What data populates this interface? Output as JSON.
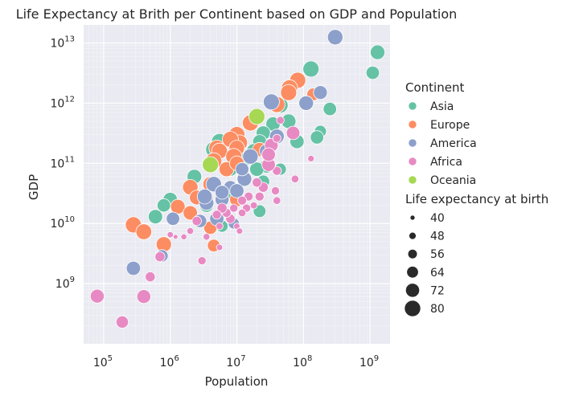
{
  "chart_data": {
    "type": "scatter",
    "title": "Life Expectancy at Brith per Continent based on GDP and Population",
    "xlabel": "Population",
    "ylabel": "GDP",
    "xscale": "log",
    "yscale": "log",
    "xlim": [
      50000,
      2000000000
    ],
    "ylim": [
      100000000,
      20000000000000
    ],
    "grid": true,
    "x_ticks": [
      "10^5",
      "10^6",
      "10^7",
      "10^8",
      "10^9"
    ],
    "y_ticks": [
      "10^9",
      "10^10",
      "10^11",
      "10^12",
      "10^13"
    ],
    "legend_placement": "right",
    "hue_title": "Continent",
    "size_title": "Life expectancy at birth",
    "continents": [
      {
        "name": "Asia",
        "color": "#66c2a5"
      },
      {
        "name": "Europe",
        "color": "#fc8d62"
      },
      {
        "name": "America",
        "color": "#8da0cb"
      },
      {
        "name": "Africa",
        "color": "#e78ac3"
      },
      {
        "name": "Oceania",
        "color": "#a6d854"
      }
    ],
    "size_legend": [
      {
        "label": "40",
        "value": 40
      },
      {
        "label": "48",
        "value": 48
      },
      {
        "label": "56",
        "value": 56
      },
      {
        "label": "64",
        "value": 64
      },
      {
        "label": "72",
        "value": 72
      },
      {
        "label": "80",
        "value": 80
      }
    ],
    "series": [
      {
        "name": "Asia",
        "points": [
          {
            "x": 1300000000,
            "y": 7000000000000,
            "life": 75
          },
          {
            "x": 1100000000,
            "y": 3200000000000,
            "life": 70
          },
          {
            "x": 130000000,
            "y": 3700000000000,
            "life": 82
          },
          {
            "x": 250000000,
            "y": 800000000000,
            "life": 70
          },
          {
            "x": 180000000,
            "y": 340000000000,
            "life": 66
          },
          {
            "x": 160000000,
            "y": 270000000000,
            "life": 70
          },
          {
            "x": 80000000,
            "y": 230000000000,
            "life": 73
          },
          {
            "x": 60000000,
            "y": 500000000000,
            "life": 75
          },
          {
            "x": 45000000,
            "y": 920000000000,
            "life": 78
          },
          {
            "x": 35000000,
            "y": 450000000000,
            "life": 74
          },
          {
            "x": 25000000,
            "y": 320000000000,
            "life": 73
          },
          {
            "x": 22000000,
            "y": 230000000000,
            "life": 72
          },
          {
            "x": 18000000,
            "y": 160000000000,
            "life": 75
          },
          {
            "x": 14000000,
            "y": 120000000000,
            "life": 70
          },
          {
            "x": 28000000,
            "y": 90000000000,
            "life": 72
          },
          {
            "x": 20000000,
            "y": 80000000000,
            "life": 74
          },
          {
            "x": 25000000,
            "y": 50000000000,
            "life": 68
          },
          {
            "x": 8000000,
            "y": 80000000000,
            "life": 73
          },
          {
            "x": 5500000,
            "y": 230000000000,
            "life": 80
          },
          {
            "x": 4500000,
            "y": 170000000000,
            "life": 80
          },
          {
            "x": 2300000,
            "y": 60000000000,
            "life": 75
          },
          {
            "x": 1000000,
            "y": 25000000000,
            "life": 74
          },
          {
            "x": 800000,
            "y": 20000000000,
            "life": 70
          },
          {
            "x": 600000,
            "y": 13000000000,
            "life": 74
          },
          {
            "x": 3500000,
            "y": 20000000000,
            "life": 72
          },
          {
            "x": 6000000,
            "y": 9000000000,
            "life": 66
          },
          {
            "x": 10000000,
            "y": 30000000000,
            "life": 70
          },
          {
            "x": 22000000,
            "y": 16000000000,
            "life": 68
          },
          {
            "x": 6500000,
            "y": 30000000000,
            "life": 70
          },
          {
            "x": 45000000,
            "y": 80000000000,
            "life": 66
          }
        ]
      },
      {
        "name": "Europe",
        "points": [
          {
            "x": 82000000,
            "y": 2400000000000,
            "life": 80
          },
          {
            "x": 62000000,
            "y": 1800000000000,
            "life": 80
          },
          {
            "x": 60000000,
            "y": 1500000000000,
            "life": 80
          },
          {
            "x": 40000000,
            "y": 950000000000,
            "life": 80
          },
          {
            "x": 140000000,
            "y": 1400000000000,
            "life": 68
          },
          {
            "x": 16000000,
            "y": 470000000000,
            "life": 80
          },
          {
            "x": 10000000,
            "y": 300000000000,
            "life": 80
          },
          {
            "x": 11000000,
            "y": 220000000000,
            "life": 79
          },
          {
            "x": 8000000,
            "y": 250000000000,
            "life": 80
          },
          {
            "x": 10000000,
            "y": 180000000000,
            "life": 78
          },
          {
            "x": 5000000,
            "y": 180000000000,
            "life": 79
          },
          {
            "x": 5500000,
            "y": 160000000000,
            "life": 79
          },
          {
            "x": 4500000,
            "y": 110000000000,
            "life": 80
          },
          {
            "x": 9000000,
            "y": 130000000000,
            "life": 80
          },
          {
            "x": 7000000,
            "y": 80000000000,
            "life": 76
          },
          {
            "x": 10000000,
            "y": 100000000000,
            "life": 75
          },
          {
            "x": 4000000,
            "y": 45000000000,
            "life": 76
          },
          {
            "x": 22000000,
            "y": 170000000000,
            "life": 73
          },
          {
            "x": 2000000,
            "y": 40000000000,
            "life": 78
          },
          {
            "x": 2500000,
            "y": 27000000000,
            "life": 75
          },
          {
            "x": 1300000,
            "y": 19000000000,
            "life": 75
          },
          {
            "x": 2000000,
            "y": 15000000000,
            "life": 74
          },
          {
            "x": 3500000,
            "y": 24000000000,
            "life": 75
          },
          {
            "x": 10000000,
            "y": 25000000000,
            "life": 74
          },
          {
            "x": 4000000,
            "y": 8500000000,
            "life": 70
          },
          {
            "x": 4500000,
            "y": 4300000000,
            "life": 68
          },
          {
            "x": 800000,
            "y": 4500000000,
            "life": 77
          },
          {
            "x": 280000,
            "y": 9500000000,
            "life": 80
          },
          {
            "x": 400000,
            "y": 7300000000,
            "life": 79
          }
        ]
      },
      {
        "name": "America",
        "points": [
          {
            "x": 300000000,
            "y": 12500000000000,
            "life": 78
          },
          {
            "x": 180000000,
            "y": 1500000000000,
            "life": 72
          },
          {
            "x": 110000000,
            "y": 1000000000000,
            "life": 75
          },
          {
            "x": 33000000,
            "y": 1050000000000,
            "life": 80
          },
          {
            "x": 40000000,
            "y": 280000000000,
            "life": 75
          },
          {
            "x": 28000000,
            "y": 160000000000,
            "life": 73
          },
          {
            "x": 16000000,
            "y": 130000000000,
            "life": 78
          },
          {
            "x": 13000000,
            "y": 55000000000,
            "life": 75
          },
          {
            "x": 8000000,
            "y": 40000000000,
            "life": 70
          },
          {
            "x": 10000000,
            "y": 35000000000,
            "life": 73
          },
          {
            "x": 6000000,
            "y": 25000000000,
            "life": 72
          },
          {
            "x": 3500000,
            "y": 22000000000,
            "life": 75
          },
          {
            "x": 3300000,
            "y": 28000000000,
            "life": 76
          },
          {
            "x": 2800000,
            "y": 11000000000,
            "life": 70
          },
          {
            "x": 5000000,
            "y": 12000000000,
            "life": 73
          },
          {
            "x": 9000000,
            "y": 10000000000,
            "life": 62
          },
          {
            "x": 1100000,
            "y": 12000000000,
            "life": 70
          },
          {
            "x": 750000,
            "y": 2900000000,
            "life": 67
          },
          {
            "x": 280000,
            "y": 1800000000,
            "life": 73
          },
          {
            "x": 4500000,
            "y": 45000000000,
            "life": 78
          },
          {
            "x": 12000000,
            "y": 80000000000,
            "life": 70
          },
          {
            "x": 6000000,
            "y": 33000000000,
            "life": 72
          }
        ]
      },
      {
        "name": "Africa",
        "points": [
          {
            "x": 130000000,
            "y": 120000000000,
            "life": 46
          },
          {
            "x": 75000000,
            "y": 55000000000,
            "life": 50
          },
          {
            "x": 70000000,
            "y": 320000000000,
            "life": 71
          },
          {
            "x": 45000000,
            "y": 520000000000,
            "life": 50
          },
          {
            "x": 40000000,
            "y": 75000000000,
            "life": 55
          },
          {
            "x": 38000000,
            "y": 35000000000,
            "life": 52
          },
          {
            "x": 40000000,
            "y": 24000000000,
            "life": 50
          },
          {
            "x": 33000000,
            "y": 200000000000,
            "life": 71
          },
          {
            "x": 30000000,
            "y": 95000000000,
            "life": 71
          },
          {
            "x": 30000000,
            "y": 140000000000,
            "life": 71
          },
          {
            "x": 25000000,
            "y": 40000000000,
            "life": 58
          },
          {
            "x": 20000000,
            "y": 48000000000,
            "life": 56
          },
          {
            "x": 22000000,
            "y": 28000000000,
            "life": 55
          },
          {
            "x": 18000000,
            "y": 20000000000,
            "life": 48
          },
          {
            "x": 15000000,
            "y": 28000000000,
            "life": 55
          },
          {
            "x": 14000000,
            "y": 18000000000,
            "life": 52
          },
          {
            "x": 12000000,
            "y": 15000000000,
            "life": 50
          },
          {
            "x": 12000000,
            "y": 24000000000,
            "life": 55
          },
          {
            "x": 10000000,
            "y": 9000000000,
            "life": 45
          },
          {
            "x": 11000000,
            "y": 7500000000,
            "life": 45
          },
          {
            "x": 9000000,
            "y": 18000000000,
            "life": 52
          },
          {
            "x": 8000000,
            "y": 12000000000,
            "life": 56
          },
          {
            "x": 7000000,
            "y": 15000000000,
            "life": 55
          },
          {
            "x": 6000000,
            "y": 18000000000,
            "life": 58
          },
          {
            "x": 5500000,
            "y": 9000000000,
            "life": 48
          },
          {
            "x": 5000000,
            "y": 14000000000,
            "life": 55
          },
          {
            "x": 5500000,
            "y": 4000000000,
            "life": 45
          },
          {
            "x": 3000000,
            "y": 2400000000,
            "life": 52
          },
          {
            "x": 3500000,
            "y": 6000000000,
            "life": 47
          },
          {
            "x": 2500000,
            "y": 11000000000,
            "life": 56
          },
          {
            "x": 2000000,
            "y": 7500000000,
            "life": 47
          },
          {
            "x": 1600000,
            "y": 6000000000,
            "life": 44
          },
          {
            "x": 1000000,
            "y": 6500000000,
            "life": 45
          },
          {
            "x": 1200000,
            "y": 6000000000,
            "life": 40
          },
          {
            "x": 700000,
            "y": 2800000000,
            "life": 58
          },
          {
            "x": 500000,
            "y": 1300000000,
            "life": 58
          },
          {
            "x": 400000,
            "y": 610000000,
            "life": 72
          },
          {
            "x": 190000,
            "y": 230000000,
            "life": 67
          },
          {
            "x": 80000,
            "y": 620000000,
            "life": 72
          },
          {
            "x": 40000000,
            "y": 260000000000,
            "life": 52
          }
        ]
      },
      {
        "name": "Oceania",
        "points": [
          {
            "x": 20000000,
            "y": 600000000000,
            "life": 81
          },
          {
            "x": 4000000,
            "y": 95000000000,
            "life": 80
          }
        ]
      }
    ]
  }
}
